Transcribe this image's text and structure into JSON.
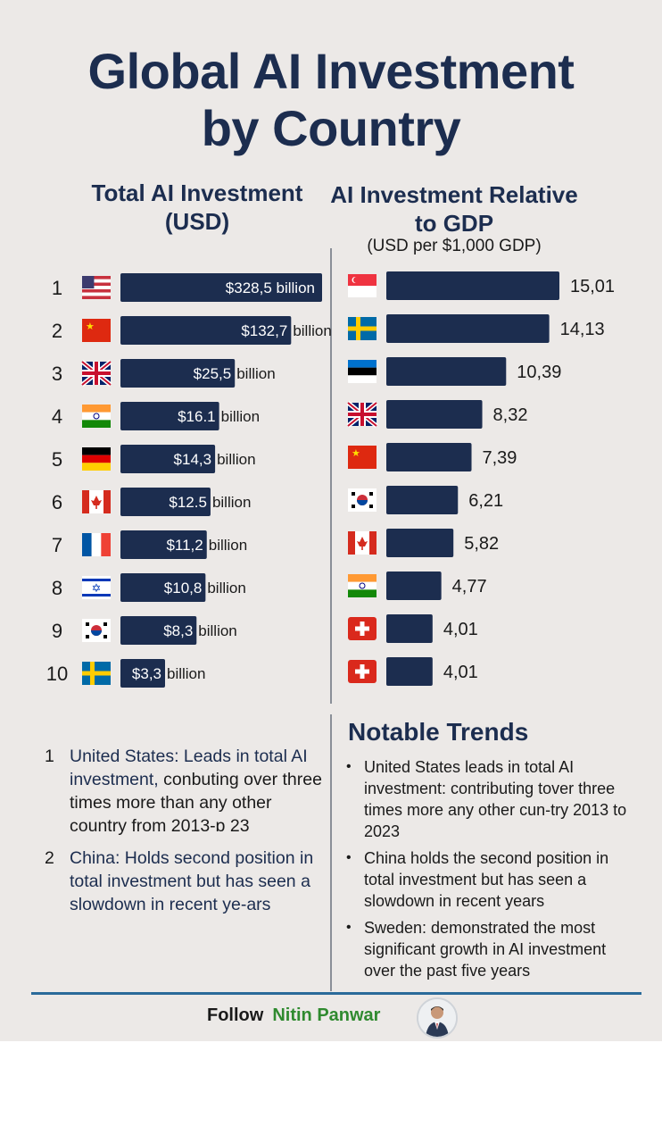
{
  "title_line1": "Global AI Investment",
  "title_line2": "by Country",
  "colors": {
    "bar": "#1c2d4f",
    "title": "#1c2d4f",
    "background": "#ece9e7",
    "footer_line": "#2a6a9a",
    "follow_name": "#2f8a2f"
  },
  "chart_data": [
    {
      "type": "bar",
      "orientation": "horizontal",
      "title": "Total AI Investment",
      "subtitle": "(USD)",
      "unit": "billion USD",
      "ranks": [
        "1",
        "2",
        "3",
        "4",
        "5",
        "6",
        "7",
        "8",
        "9",
        "10"
      ],
      "flags": [
        "flag-united-states",
        "flag-china",
        "flag-united-kingdom",
        "flag-india",
        "flag-germany",
        "flag-canada",
        "flag-france",
        "flag-israel",
        "flag-south-korea",
        "flag-sweden"
      ],
      "value_labels": [
        "$328,5 billion",
        "$132,7 billion",
        "$25,5 billion",
        "$16.1 billion",
        "$14,3 billion",
        "$12.5 billion",
        "$11,2 billion",
        "$10,8 billion",
        "$8,3 billion",
        "$3,3 billion"
      ],
      "values": [
        328.5,
        132.7,
        25.5,
        16.1,
        14.3,
        12.5,
        11.2,
        10.8,
        8.3,
        3.3
      ]
    },
    {
      "type": "bar",
      "orientation": "horizontal",
      "title": "AI Investment Relative to GDP",
      "subtitle": "(USD per $1,000 GDP)",
      "flags": [
        "flag-singapore",
        "flag-sweden",
        "flag-estonia",
        "flag-united-kingdom",
        "flag-china",
        "flag-south-korea",
        "flag-canada",
        "flag-india",
        "flag-switzerland",
        "flag-switzerland"
      ],
      "value_labels": [
        "15,01",
        "14,13",
        "10,39",
        "8,32",
        "7,39",
        "6,21",
        "5,82",
        "4,77",
        "4,01",
        "4,01"
      ],
      "values": [
        15.01,
        14.13,
        10.39,
        8.32,
        7.39,
        6.21,
        5.82,
        4.77,
        4.01,
        4.01
      ]
    }
  ],
  "left_notes": [
    {
      "num": "1",
      "lead": "United States: Leads in total AI investment,",
      "rest": " conbuting over three times more than any other country from 2013-ɒ 23"
    },
    {
      "num": "2",
      "lead": "China: Holds second position in total investment but has seen a slowdown in recent ye-ars",
      "rest": ""
    }
  ],
  "trends_title": "Notable Trends",
  "trends": [
    "United States leads in total AI investment: contributing tover three times more any other cun-try 2013 to 2023",
    "China holds the second position in total investment but has seen a slowdown in recent years",
    "Sweden: demonstrated the most significant growth in AI investment over the past five years"
  ],
  "footer": {
    "follow_label": "Follow",
    "name": "Nitin Panwar"
  }
}
